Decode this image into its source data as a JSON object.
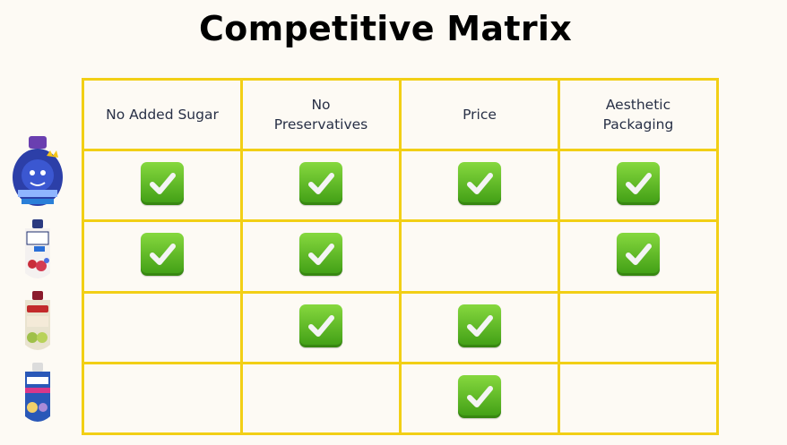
{
  "title": "Competitive Matrix",
  "columns": [
    "No Added Sugar",
    "No Preservatives",
    "Price",
    "Aesthetic\nPackaging"
  ],
  "rows": [
    {
      "product_icon": "blue-pouch-icon",
      "checks": [
        true,
        true,
        true,
        true
      ]
    },
    {
      "product_icon": "once-upon-a-farm-pouch-icon",
      "checks": [
        true,
        true,
        false,
        true
      ]
    },
    {
      "product_icon": "heinz-pouch-icon",
      "checks": [
        false,
        true,
        true,
        false
      ]
    },
    {
      "product_icon": "gerber-pouch-icon",
      "checks": [
        false,
        false,
        true,
        false
      ]
    }
  ],
  "colors": {
    "grid": "#f2cf15",
    "check": "#5fb52a",
    "background": "#fdfaf4"
  }
}
